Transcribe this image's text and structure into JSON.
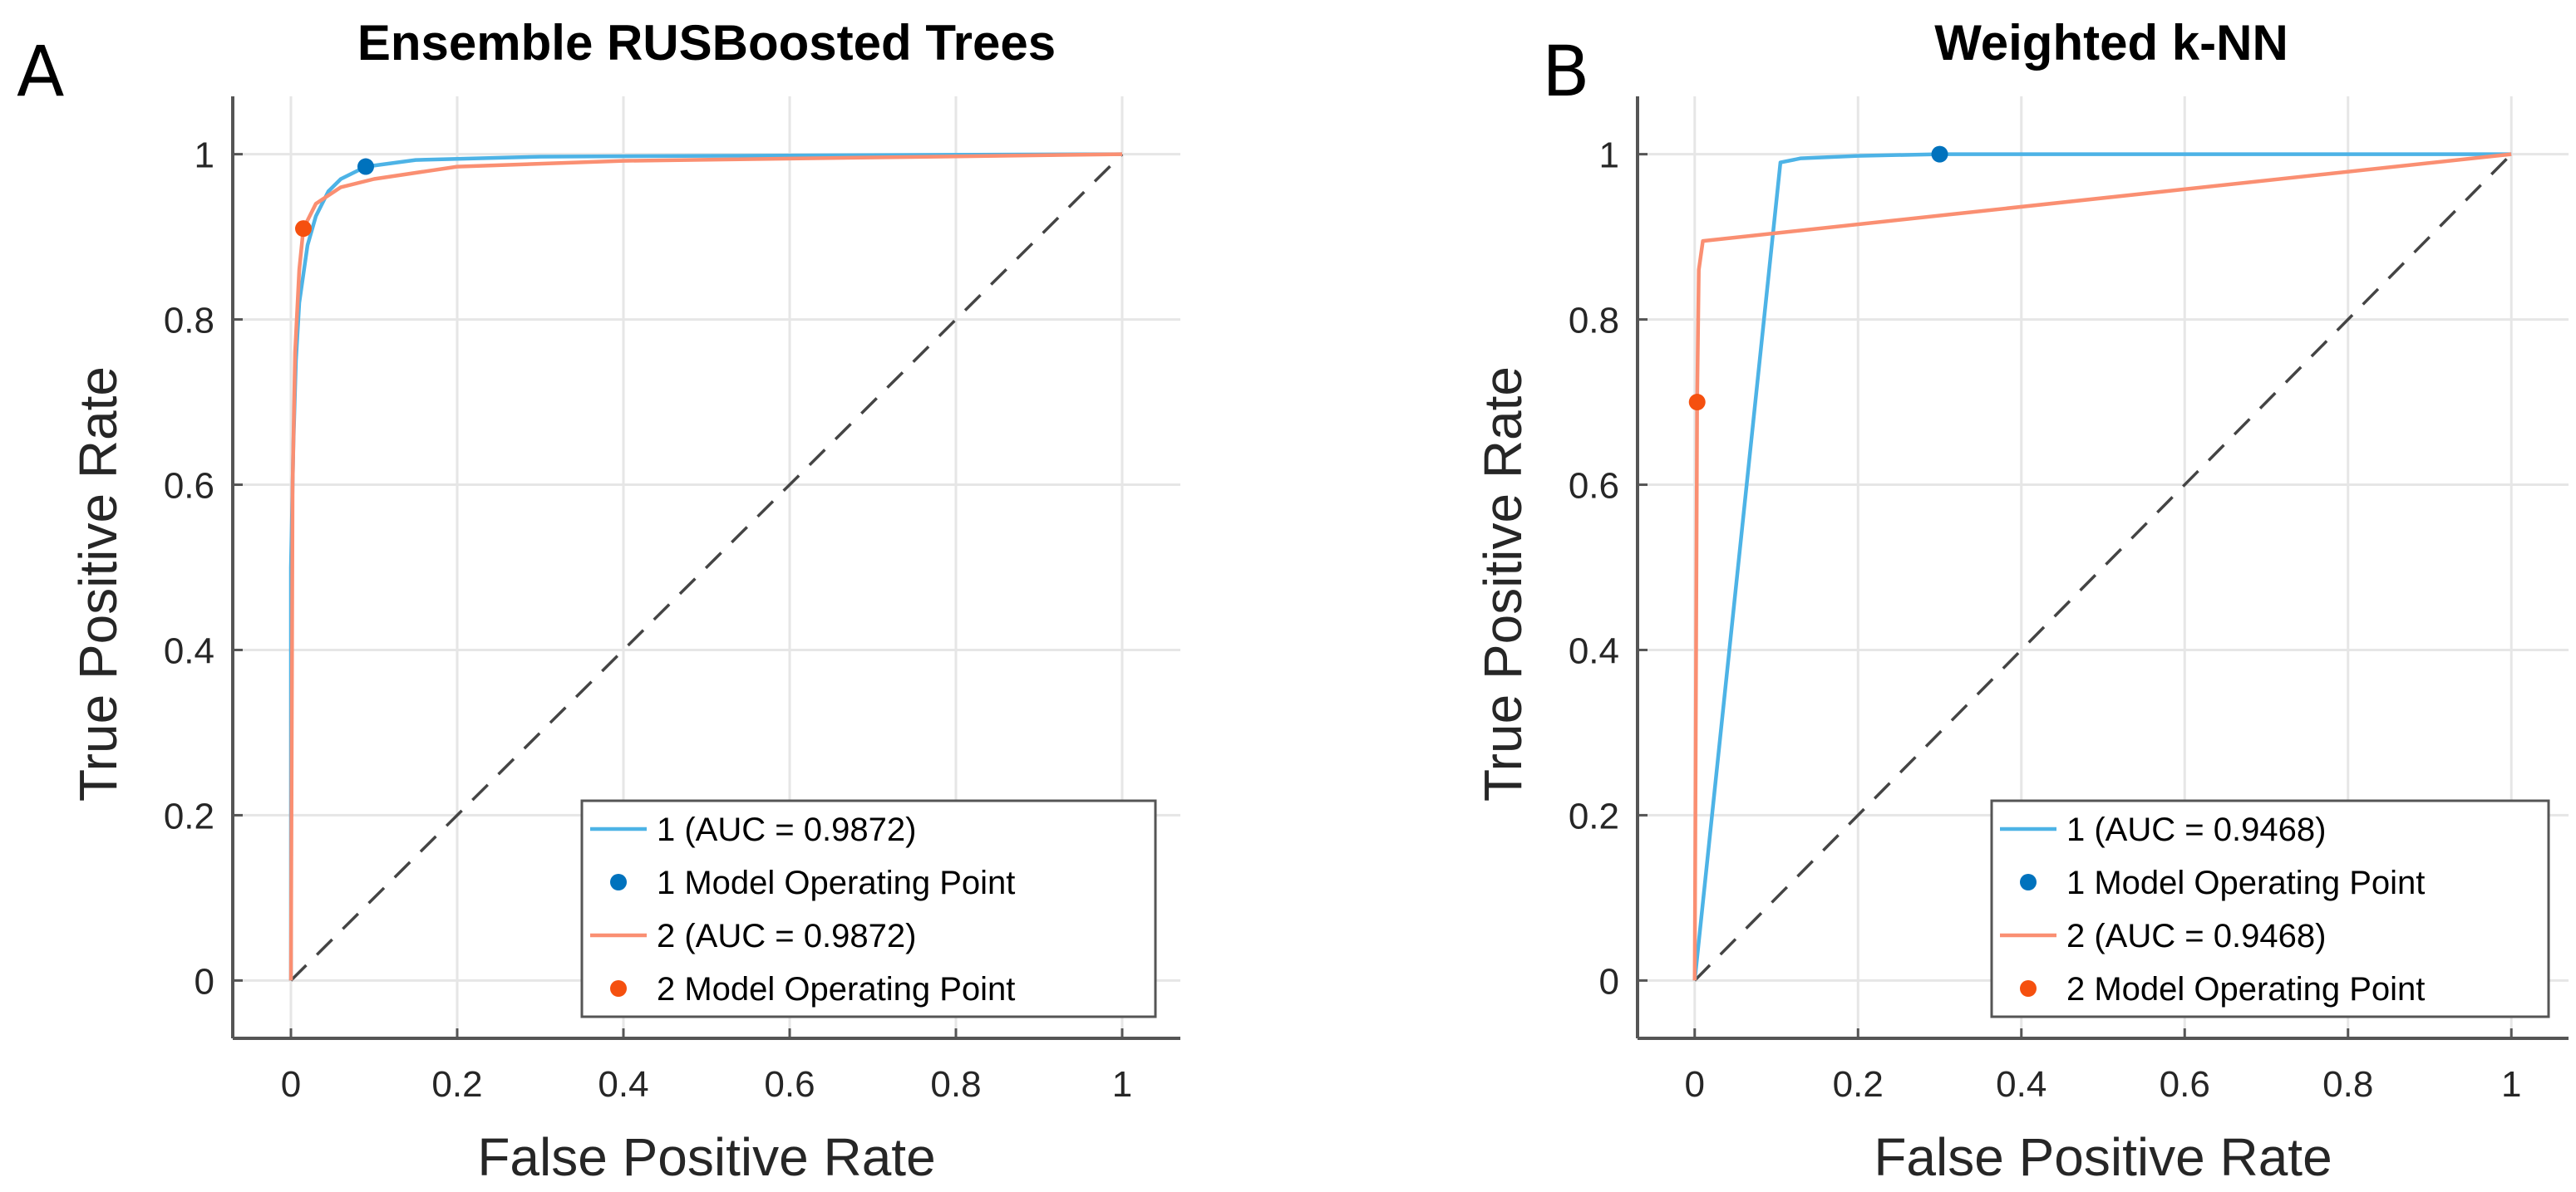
{
  "chart_data": [
    {
      "panel_label": "A",
      "type": "line",
      "title": "Ensemble RUSBoosted Trees",
      "xlabel": "False Positive Rate",
      "ylabel": "True Positive Rate",
      "xlim": [
        -0.07,
        1.07
      ],
      "ylim": [
        -0.07,
        1.07
      ],
      "xticks": [
        0,
        0.2,
        0.4,
        0.6,
        0.8,
        1
      ],
      "xtick_labels": [
        "0",
        "0.2",
        "0.4",
        "0.6",
        "0.8",
        "1"
      ],
      "yticks": [
        0,
        0.2,
        0.4,
        0.6,
        0.8,
        1
      ],
      "ytick_labels": [
        "0",
        "0.2",
        "0.4",
        "0.6",
        "0.8",
        "1"
      ],
      "grid": true,
      "legend_position": "bottom-right",
      "series": [
        {
          "name": "1 (AUC = 0.9872)",
          "kind": "line",
          "color": "#4DB3E6",
          "x": [
            0,
            0,
            0.003,
            0.006,
            0.01,
            0.02,
            0.03,
            0.045,
            0.06,
            0.09,
            0.15,
            0.3,
            0.5,
            1
          ],
          "y": [
            0,
            0.5,
            0.65,
            0.75,
            0.82,
            0.89,
            0.925,
            0.955,
            0.97,
            0.985,
            0.993,
            0.997,
            0.998,
            1
          ]
        },
        {
          "name": "1 Model Operating Point",
          "kind": "point",
          "color": "#0072BD",
          "x": [
            0.09
          ],
          "y": [
            0.985
          ]
        },
        {
          "name": "2 (AUC = 0.9872)",
          "kind": "line",
          "color": "#FA8F72",
          "x": [
            0,
            0.002,
            0.005,
            0.01,
            0.015,
            0.03,
            0.06,
            0.1,
            0.2,
            0.4,
            1
          ],
          "y": [
            0,
            0.6,
            0.76,
            0.86,
            0.91,
            0.94,
            0.96,
            0.97,
            0.985,
            0.992,
            1
          ]
        },
        {
          "name": "2 Model Operating Point",
          "kind": "point",
          "color": "#F5500F",
          "x": [
            0.015
          ],
          "y": [
            0.91
          ]
        },
        {
          "name": "chance",
          "kind": "diagonal",
          "color": "#444444",
          "x": [
            0,
            1
          ],
          "y": [
            0,
            1
          ]
        }
      ]
    },
    {
      "panel_label": "B",
      "type": "line",
      "title": "Weighted k-NN",
      "xlabel": "False Positive Rate",
      "ylabel": "True Positive Rate",
      "xlim": [
        -0.07,
        1.07
      ],
      "ylim": [
        -0.07,
        1.07
      ],
      "xticks": [
        0,
        0.2,
        0.4,
        0.6,
        0.8,
        1
      ],
      "xtick_labels": [
        "0",
        "0.2",
        "0.4",
        "0.6",
        "0.8",
        "1"
      ],
      "yticks": [
        0,
        0.2,
        0.4,
        0.6,
        0.8,
        1
      ],
      "ytick_labels": [
        "0",
        "0.2",
        "0.4",
        "0.6",
        "0.8",
        "1"
      ],
      "grid": true,
      "legend_position": "bottom-right",
      "series": [
        {
          "name": "1 (AUC = 0.9468)",
          "kind": "line",
          "color": "#4DB3E6",
          "x": [
            0,
            0.105,
            0.13,
            0.2,
            0.3,
            1
          ],
          "y": [
            0,
            0.99,
            0.995,
            0.998,
            1,
            1
          ]
        },
        {
          "name": "1 Model Operating Point",
          "kind": "point",
          "color": "#0072BD",
          "x": [
            0.3
          ],
          "y": [
            1
          ]
        },
        {
          "name": "2 (AUC = 0.9468)",
          "kind": "line",
          "color": "#FA8F72",
          "x": [
            0,
            0.003,
            0.005,
            0.01,
            1
          ],
          "y": [
            0,
            0.7,
            0.86,
            0.895,
            1
          ]
        },
        {
          "name": "2 Model Operating Point",
          "kind": "point",
          "color": "#F5500F",
          "x": [
            0.003
          ],
          "y": [
            0.7
          ]
        },
        {
          "name": "chance",
          "kind": "diagonal",
          "color": "#444444",
          "x": [
            0,
            1
          ],
          "y": [
            0,
            1
          ]
        }
      ]
    }
  ]
}
